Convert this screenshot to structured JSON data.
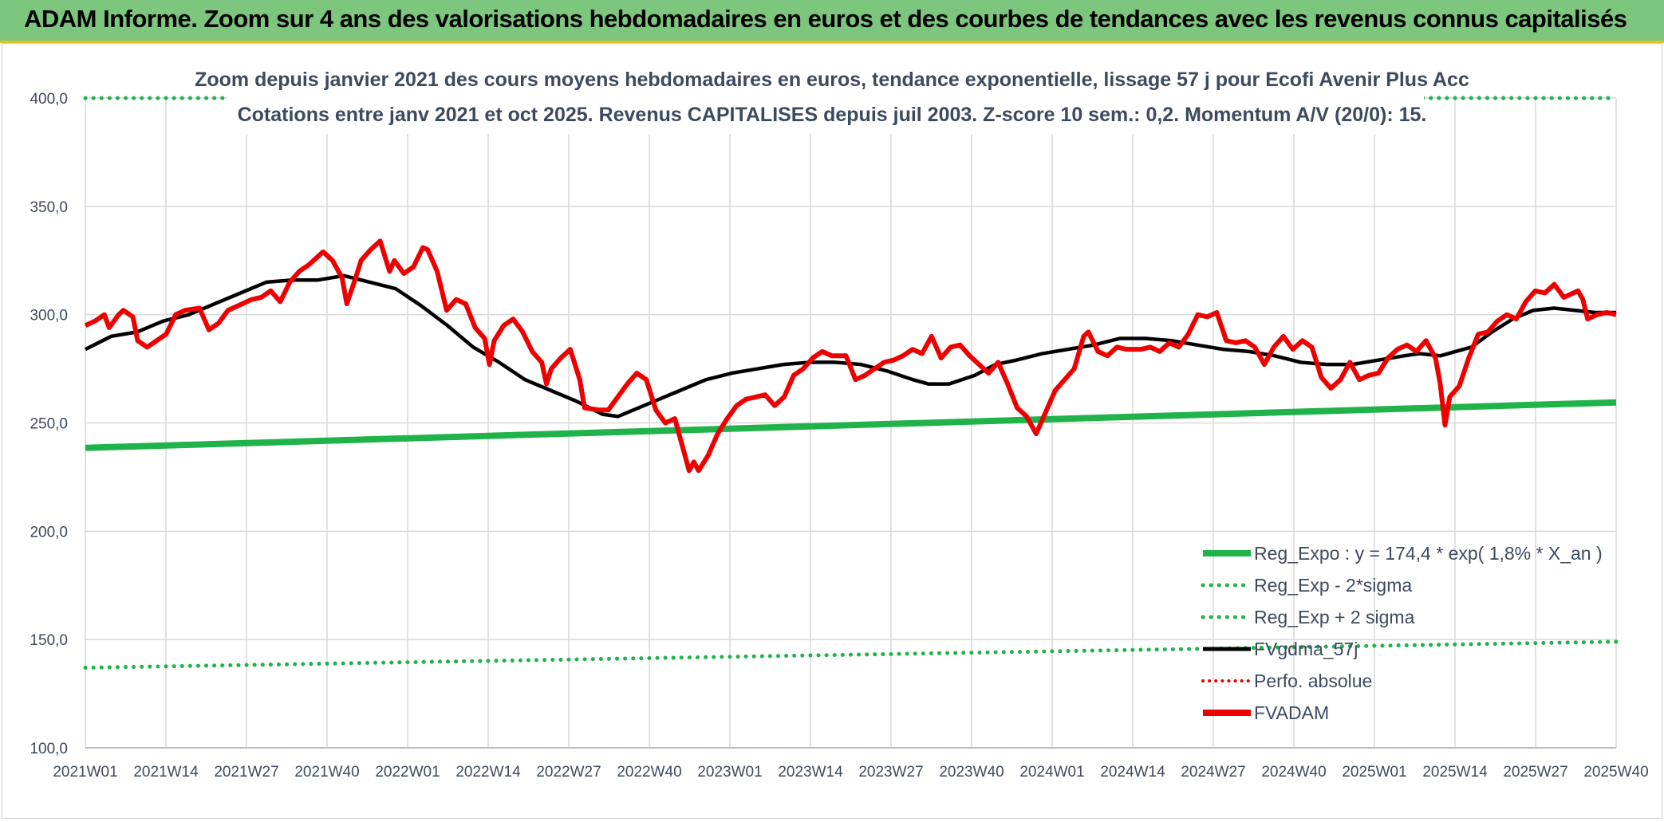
{
  "banner": {
    "title": "ADAM Informe. Zoom sur 4 ans des valorisations hebdomadaires en euros et des courbes de tendances avec les revenus connus capitalisés"
  },
  "colors": {
    "banner_bg": "#7dc67d",
    "reg_expo": "#1fb34a",
    "fvadam": "#ee0000",
    "fvgdma": "#000000",
    "perfo": "#ee0000",
    "grid": "#d9d9d9",
    "text": "#3b4a5e"
  },
  "chart_data": {
    "type": "line",
    "title_line1": "Zoom depuis janvier 2021 des cours moyens hebdomadaires en euros, tendance exponentielle, lissage 57 j pour Ecofi Avenir Plus Acc",
    "title_line2": "Cotations entre janv 2021 et oct 2025. Revenus CAPITALISES depuis juil 2003. Z-score 10 sem.: 0,2. Momentum A/V (20/0): 15.",
    "ylim": [
      100,
      400
    ],
    "yticks": [
      "100,0",
      "150,0",
      "200,0",
      "250,0",
      "300,0",
      "350,0",
      "400,0"
    ],
    "ytick_values": [
      100,
      150,
      200,
      250,
      300,
      350,
      400
    ],
    "x_count": 248,
    "xtick_labels": [
      "2021W01",
      "2021W14",
      "2021W27",
      "2021W40",
      "2022W01",
      "2022W14",
      "2022W27",
      "2022W40",
      "2023W01",
      "2023W14",
      "2023W27",
      "2023W40",
      "2024W01",
      "2024W14",
      "2024W27",
      "2024W40",
      "2025W01",
      "2025W14",
      "2025W27",
      "2025W40"
    ],
    "xtick_index": [
      0,
      13,
      26,
      39,
      52,
      65,
      78,
      91,
      104,
      117,
      130,
      143,
      156,
      169,
      182,
      195,
      208,
      221,
      234,
      247
    ],
    "legend": [
      {
        "name": "Reg_Expo : y = 174,4 * exp( 1,8% *  X_an )",
        "style": "solid-green"
      },
      {
        "name": "Reg_Exp - 2*sigma",
        "style": "dotted-green"
      },
      {
        "name": "Reg_Exp + 2 sigma",
        "style": "dotted-green"
      },
      {
        "name": "FVgdma_57j",
        "style": "solid-black"
      },
      {
        "name": "Perfo. absolue",
        "style": "dotted-red"
      },
      {
        "name": "FVADAM",
        "style": "solid-red"
      }
    ],
    "series": [
      {
        "name": "Reg_Expo",
        "start": 238.5,
        "end": 259.5
      },
      {
        "name": "Reg_Exp - 2*sigma",
        "start": 137,
        "end": 149
      },
      {
        "name": "Reg_Exp + 2 sigma",
        "start": 400,
        "end": 400
      },
      {
        "name": "FVgdma_57j",
        "points": [
          [
            0,
            284
          ],
          [
            5,
            290
          ],
          [
            10,
            292
          ],
          [
            15,
            297
          ],
          [
            20,
            300
          ],
          [
            25,
            305
          ],
          [
            30,
            310
          ],
          [
            35,
            315
          ],
          [
            40,
            316
          ],
          [
            45,
            316
          ],
          [
            50,
            318
          ],
          [
            55,
            315
          ],
          [
            60,
            312
          ],
          [
            65,
            304
          ],
          [
            70,
            295
          ],
          [
            75,
            285
          ],
          [
            80,
            278
          ],
          [
            85,
            270
          ],
          [
            90,
            265
          ],
          [
            95,
            260
          ],
          [
            100,
            254
          ],
          [
            103,
            253
          ],
          [
            110,
            260
          ],
          [
            115,
            265
          ],
          [
            120,
            270
          ],
          [
            125,
            273
          ],
          [
            130,
            275
          ],
          [
            135,
            277
          ],
          [
            140,
            278
          ],
          [
            145,
            278
          ],
          [
            150,
            277
          ],
          [
            155,
            274
          ],
          [
            160,
            270
          ],
          [
            163,
            268
          ],
          [
            167,
            268
          ],
          [
            172,
            272
          ],
          [
            176,
            277
          ],
          [
            180,
            279
          ],
          [
            185,
            282
          ],
          [
            190,
            284
          ],
          [
            195,
            286
          ],
          [
            200,
            289
          ],
          [
            205,
            289
          ],
          [
            210,
            288
          ],
          [
            215,
            286
          ],
          [
            220,
            284
          ],
          [
            225,
            283
          ],
          [
            230,
            281
          ],
          [
            235,
            278
          ],
          [
            240,
            277
          ],
          [
            245,
            277
          ],
          [
            250,
            279
          ],
          [
            255,
            281
          ],
          [
            258,
            282
          ],
          [
            262,
            281
          ],
          [
            265,
            283
          ],
          [
            268,
            285
          ],
          [
            272,
            292
          ],
          [
            276,
            298
          ],
          [
            280,
            302
          ],
          [
            284,
            303
          ],
          [
            288,
            302
          ],
          [
            292,
            301
          ],
          [
            296,
            301
          ]
        ]
      },
      {
        "name": "FVADAM",
        "points": [
          [
            0,
            295
          ],
          [
            2,
            297
          ],
          [
            4,
            300
          ],
          [
            5,
            294
          ],
          [
            7,
            300
          ],
          [
            8,
            302
          ],
          [
            10,
            299
          ],
          [
            11,
            288
          ],
          [
            13,
            285
          ],
          [
            15,
            288
          ],
          [
            17,
            291
          ],
          [
            19,
            300
          ],
          [
            21,
            302
          ],
          [
            24,
            303
          ],
          [
            26,
            293
          ],
          [
            28,
            296
          ],
          [
            30,
            302
          ],
          [
            33,
            305
          ],
          [
            35,
            307
          ],
          [
            37,
            308
          ],
          [
            39,
            311
          ],
          [
            41,
            306
          ],
          [
            43,
            315
          ],
          [
            45,
            320
          ],
          [
            47,
            323
          ],
          [
            50,
            329
          ],
          [
            52,
            325
          ],
          [
            54,
            317
          ],
          [
            55,
            305
          ],
          [
            57,
            318
          ],
          [
            58,
            325
          ],
          [
            60,
            330
          ],
          [
            62,
            334
          ],
          [
            64,
            320
          ],
          [
            65,
            325
          ],
          [
            67,
            319
          ],
          [
            69,
            322
          ],
          [
            71,
            331
          ],
          [
            72,
            330
          ],
          [
            74,
            320
          ],
          [
            76,
            302
          ],
          [
            78,
            307
          ],
          [
            80,
            305
          ],
          [
            82,
            294
          ],
          [
            84,
            289
          ],
          [
            85,
            277
          ],
          [
            86,
            288
          ],
          [
            88,
            295
          ],
          [
            90,
            298
          ],
          [
            92,
            292
          ],
          [
            94,
            283
          ],
          [
            96,
            278
          ],
          [
            97,
            268
          ],
          [
            98,
            275
          ],
          [
            100,
            280
          ],
          [
            102,
            284
          ],
          [
            104,
            270
          ],
          [
            105,
            257
          ],
          [
            108,
            256
          ],
          [
            110,
            256
          ],
          [
            112,
            262
          ],
          [
            114,
            268
          ],
          [
            116,
            273
          ],
          [
            118,
            270
          ],
          [
            120,
            256
          ],
          [
            122,
            250
          ],
          [
            124,
            252
          ],
          [
            126,
            236
          ],
          [
            127,
            228
          ],
          [
            128,
            232
          ],
          [
            129,
            228
          ],
          [
            131,
            235
          ],
          [
            133,
            245
          ],
          [
            135,
            252
          ],
          [
            137,
            258
          ],
          [
            139,
            261
          ],
          [
            141,
            262
          ],
          [
            143,
            263
          ],
          [
            145,
            258
          ],
          [
            147,
            262
          ],
          [
            149,
            272
          ],
          [
            151,
            275
          ],
          [
            153,
            280
          ],
          [
            155,
            283
          ],
          [
            157,
            281
          ],
          [
            160,
            281
          ],
          [
            162,
            270
          ],
          [
            164,
            272
          ],
          [
            166,
            275
          ],
          [
            168,
            278
          ],
          [
            170,
            279
          ],
          [
            172,
            281
          ],
          [
            174,
            284
          ],
          [
            176,
            282
          ],
          [
            178,
            290
          ],
          [
            180,
            280
          ],
          [
            182,
            285
          ],
          [
            184,
            286
          ],
          [
            186,
            281
          ],
          [
            188,
            277
          ],
          [
            190,
            273
          ],
          [
            192,
            278
          ],
          [
            194,
            268
          ],
          [
            196,
            257
          ],
          [
            198,
            253
          ],
          [
            200,
            245
          ],
          [
            202,
            255
          ],
          [
            204,
            265
          ],
          [
            206,
            270
          ],
          [
            208,
            275
          ],
          [
            210,
            290
          ],
          [
            211,
            292
          ],
          [
            213,
            283
          ],
          [
            215,
            281
          ],
          [
            217,
            285
          ],
          [
            219,
            284
          ],
          [
            222,
            284
          ],
          [
            224,
            285
          ],
          [
            226,
            283
          ],
          [
            228,
            287
          ],
          [
            230,
            285
          ],
          [
            232,
            291
          ],
          [
            234,
            300
          ],
          [
            236,
            299
          ],
          [
            238,
            301
          ],
          [
            240,
            288
          ],
          [
            242,
            287
          ],
          [
            244,
            288
          ],
          [
            246,
            285
          ],
          [
            248,
            277
          ],
          [
            250,
            285
          ],
          [
            252,
            290
          ],
          [
            254,
            284
          ],
          [
            256,
            288
          ],
          [
            258,
            285
          ],
          [
            260,
            271
          ],
          [
            262,
            266
          ],
          [
            264,
            270
          ],
          [
            266,
            278
          ],
          [
            268,
            270
          ],
          [
            270,
            272
          ],
          [
            272,
            273
          ],
          [
            274,
            280
          ],
          [
            276,
            284
          ],
          [
            278,
            286
          ],
          [
            280,
            283
          ],
          [
            282,
            288
          ],
          [
            284,
            280
          ],
          [
            285,
            268
          ],
          [
            286,
            249
          ],
          [
            287,
            262
          ],
          [
            289,
            267
          ],
          [
            291,
            280
          ],
          [
            293,
            291
          ],
          [
            295,
            292
          ],
          [
            297,
            297
          ],
          [
            299,
            300
          ],
          [
            301,
            298
          ],
          [
            303,
            306
          ],
          [
            305,
            311
          ],
          [
            307,
            310
          ],
          [
            309,
            314
          ],
          [
            311,
            308
          ],
          [
            313,
            310
          ],
          [
            314,
            311
          ],
          [
            315,
            307
          ],
          [
            316,
            298
          ],
          [
            318,
            300
          ],
          [
            320,
            301
          ],
          [
            322,
            300
          ]
        ]
      }
    ]
  }
}
